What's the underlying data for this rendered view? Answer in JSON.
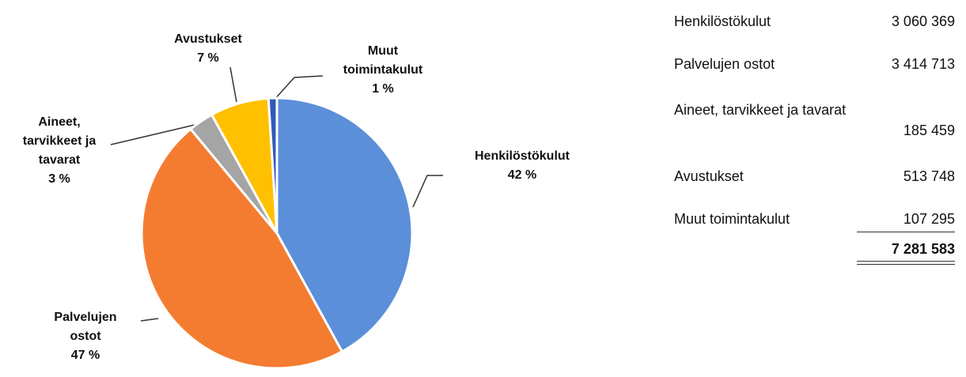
{
  "chart_data": {
    "type": "pie",
    "categories": [
      "Henkilöstökulut",
      "Palvelujen ostot",
      "Aineet, tarvikkeet ja tavarat",
      "Avustukset",
      "Muut toimintakulut"
    ],
    "values": [
      42,
      47,
      3,
      7,
      1
    ],
    "value_labels": [
      "42 %",
      "47 %",
      "3 %",
      "7 %",
      "1 %"
    ],
    "colors": [
      "#5b8fd9",
      "#f47c30",
      "#a5a5a5",
      "#ffc000",
      "#2f5bb7"
    ]
  },
  "table": {
    "rows": [
      [
        "Henkilöstökulut",
        "3 060 369"
      ],
      [
        "Palvelujen ostot",
        "3 414 713"
      ],
      [
        "Aineet, tarvikkeet ja tavarat",
        "185 459"
      ],
      [
        "Avustukset",
        "513 748"
      ],
      [
        "Muut toimintakulut",
        "107 295"
      ]
    ],
    "total": "7 281 583"
  }
}
